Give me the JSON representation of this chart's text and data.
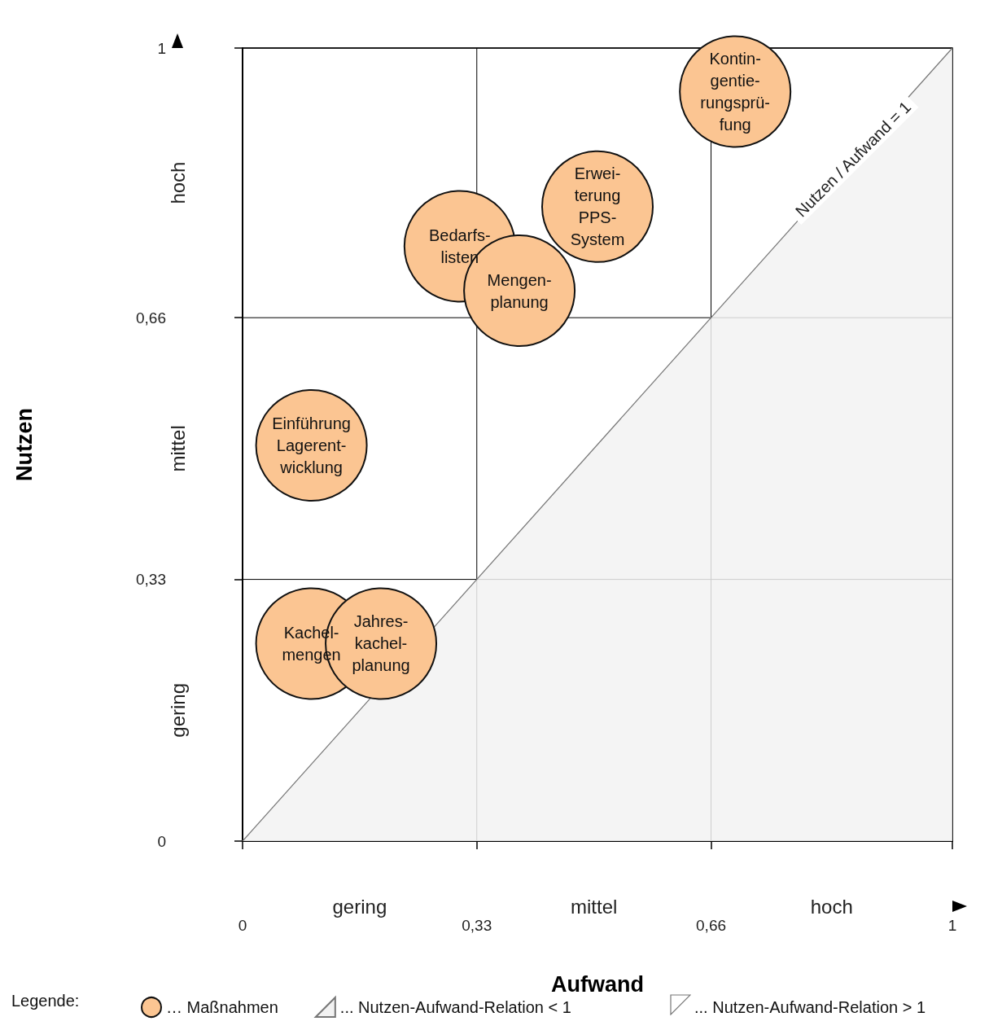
{
  "chart_data": {
    "type": "scatter",
    "xlabel": "Aufwand",
    "ylabel": "Nutzen",
    "legend_title": "Legende:",
    "xlim": [
      0,
      1
    ],
    "ylim": [
      0,
      1
    ],
    "xticks": [
      0,
      {
        "value": 0.33,
        "label": "0,33"
      },
      {
        "value": 0.66,
        "label": "0,66"
      },
      1
    ],
    "yticks": [
      0,
      {
        "value": 0.33,
        "label": "0,33"
      },
      {
        "value": 0.66,
        "label": "0,66"
      },
      1
    ],
    "grid": true,
    "legend": "bottom",
    "series": [
      {
        "name": "… Maßnahmen",
        "color": "#fbc592",
        "x": [
          0.694,
          0.5,
          0.306,
          0.39,
          0.097,
          0.097,
          0.195
        ],
        "values": [
          0.945,
          0.8,
          0.75,
          0.694,
          0.499,
          0.249,
          0.249
        ],
        "value_labels": [
          "Kontin-\ngentie-\nrungsprü-\nfung",
          "Erwei-\nterung\nPPS-\nSystem",
          "Bedarfs-\nlisten",
          "Mengen-\nplanung",
          "Einführung\nLagerent-\nwicklung",
          "Kachel-\nmengen",
          "Jahres-\nkachel-\nplanung"
        ]
      },
      {
        "name": "... Nutzen-Aufwand-Relation < 1",
        "type": "area",
        "color": "#f2f2f2",
        "x": [
          0,
          1
        ],
        "values": [
          0,
          1
        ]
      }
    ],
    "annotations": [
      "gering",
      "mittel",
      "hoch",
      "gering",
      "mittel",
      "hoch",
      {
        "text": "Nutzen / Aufwand = 1",
        "x": 0.86,
        "y": 0.86
      },
      "... Nutzen-Aufwand-Relation > 1"
    ]
  }
}
